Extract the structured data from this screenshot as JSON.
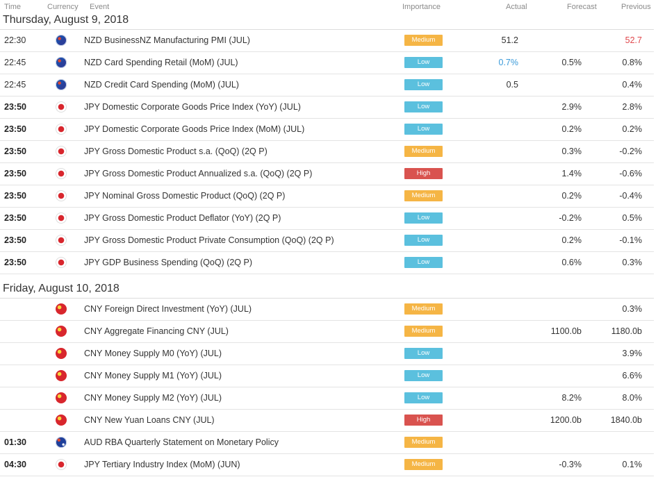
{
  "colors": {
    "medium": "#f5b545",
    "low": "#5bc0de",
    "high": "#d9534f",
    "actual_red": "#e0474c",
    "actual_blue": "#3a9ad9"
  },
  "header": {
    "time": "Time",
    "currency": "Currency",
    "event": "Event",
    "importance": "Importance",
    "actual": "Actual",
    "forecast": "Forecast",
    "previous": "Previous"
  },
  "days": [
    {
      "title": "Thursday, August 9, 2018",
      "rows": [
        {
          "time": "22:30",
          "bold": false,
          "flag": "nz-flag-icon",
          "event": "NZD BusinessNZ Manufacturing PMI (JUL)",
          "importance": "Medium",
          "actual": "51.2",
          "forecast": "",
          "previous": "52.7",
          "prev_color": "red"
        },
        {
          "time": "22:45",
          "bold": false,
          "flag": "nz-flag-icon",
          "event": "NZD Card Spending Retail (MoM) (JUL)",
          "importance": "Low",
          "actual": "0.7%",
          "actual_color": "blue",
          "forecast": "0.5%",
          "previous": "0.8%"
        },
        {
          "time": "22:45",
          "bold": false,
          "flag": "nz-flag-icon",
          "event": "NZD Credit Card Spending (MoM) (JUL)",
          "importance": "Low",
          "actual": "0.5",
          "forecast": "",
          "previous": "0.4%"
        },
        {
          "time": "23:50",
          "bold": true,
          "flag": "jp-flag-icon",
          "event": "JPY Domestic Corporate Goods Price Index (YoY) (JUL)",
          "importance": "Low",
          "actual": "",
          "forecast": "2.9%",
          "previous": "2.8%"
        },
        {
          "time": "23:50",
          "bold": true,
          "flag": "jp-flag-icon",
          "event": "JPY Domestic Corporate Goods Price Index (MoM) (JUL)",
          "importance": "Low",
          "actual": "",
          "forecast": "0.2%",
          "previous": "0.2%"
        },
        {
          "time": "23:50",
          "bold": true,
          "flag": "jp-flag-icon",
          "event": "JPY Gross Domestic Product s.a. (QoQ) (2Q P)",
          "importance": "Medium",
          "actual": "",
          "forecast": "0.3%",
          "previous": "-0.2%"
        },
        {
          "time": "23:50",
          "bold": true,
          "flag": "jp-flag-icon",
          "event": "JPY Gross Domestic Product Annualized s.a. (QoQ) (2Q P)",
          "importance": "High",
          "actual": "",
          "forecast": "1.4%",
          "previous": "-0.6%"
        },
        {
          "time": "23:50",
          "bold": true,
          "flag": "jp-flag-icon",
          "event": "JPY Nominal Gross Domestic Product (QoQ) (2Q P)",
          "importance": "Medium",
          "actual": "",
          "forecast": "0.2%",
          "previous": "-0.4%"
        },
        {
          "time": "23:50",
          "bold": true,
          "flag": "jp-flag-icon",
          "event": "JPY Gross Domestic Product Deflator (YoY) (2Q P)",
          "importance": "Low",
          "actual": "",
          "forecast": "-0.2%",
          "previous": "0.5%"
        },
        {
          "time": "23:50",
          "bold": true,
          "flag": "jp-flag-icon",
          "event": "JPY Gross Domestic Product Private Consumption (QoQ) (2Q P)",
          "importance": "Low",
          "actual": "",
          "forecast": "0.2%",
          "previous": "-0.1%"
        },
        {
          "time": "23:50",
          "bold": true,
          "flag": "jp-flag-icon",
          "event": "JPY GDP Business Spending (QoQ) (2Q P)",
          "importance": "Low",
          "actual": "",
          "forecast": "0.6%",
          "previous": "0.3%"
        }
      ]
    },
    {
      "title": "Friday, August 10, 2018",
      "rows": [
        {
          "time": "",
          "bold": false,
          "flag": "cn-flag-icon",
          "event": "CNY Foreign Direct Investment (YoY) (JUL)",
          "importance": "Medium",
          "actual": "",
          "forecast": "",
          "previous": "0.3%"
        },
        {
          "time": "",
          "bold": false,
          "flag": "cn-flag-icon",
          "event": "CNY Aggregate Financing CNY (JUL)",
          "importance": "Medium",
          "actual": "",
          "forecast": "1100.0b",
          "previous": "1180.0b"
        },
        {
          "time": "",
          "bold": false,
          "flag": "cn-flag-icon",
          "event": "CNY Money Supply M0 (YoY) (JUL)",
          "importance": "Low",
          "actual": "",
          "forecast": "",
          "previous": "3.9%"
        },
        {
          "time": "",
          "bold": false,
          "flag": "cn-flag-icon",
          "event": "CNY Money Supply M1 (YoY) (JUL)",
          "importance": "Low",
          "actual": "",
          "forecast": "",
          "previous": "6.6%"
        },
        {
          "time": "",
          "bold": false,
          "flag": "cn-flag-icon",
          "event": "CNY Money Supply M2 (YoY) (JUL)",
          "importance": "Low",
          "actual": "",
          "forecast": "8.2%",
          "previous": "8.0%"
        },
        {
          "time": "",
          "bold": false,
          "flag": "cn-flag-icon",
          "event": "CNY New Yuan Loans CNY (JUL)",
          "importance": "High",
          "actual": "",
          "forecast": "1200.0b",
          "previous": "1840.0b"
        },
        {
          "time": "01:30",
          "bold": true,
          "flag": "au-flag-icon",
          "event": "AUD RBA Quarterly Statement on Monetary Policy",
          "importance": "Medium",
          "actual": "",
          "forecast": "",
          "previous": ""
        },
        {
          "time": "04:30",
          "bold": true,
          "flag": "jp-flag-icon",
          "event": "JPY Tertiary Industry Index (MoM) (JUN)",
          "importance": "Medium",
          "actual": "",
          "forecast": "-0.3%",
          "previous": "0.1%"
        }
      ]
    }
  ]
}
